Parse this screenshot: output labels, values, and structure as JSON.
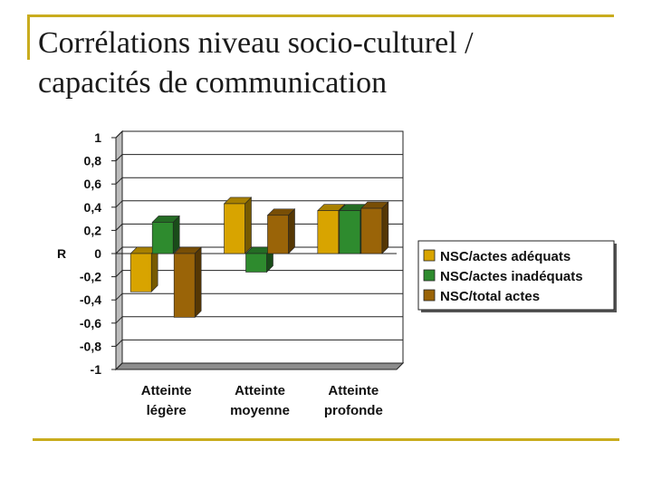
{
  "slide": {
    "title_line1": "Corrélations niveau socio-culturel /",
    "title_line2": "capacités de communication",
    "accent_color": "#c9ac1e"
  },
  "chart_data": {
    "type": "bar",
    "ylabel": "R",
    "ylim": [
      -1,
      1
    ],
    "ytick_labels": [
      "1",
      "0,8",
      "0,6",
      "0,4",
      "0,2",
      "0",
      "-0,2",
      "-0,4",
      "-0,6",
      "-0,8",
      "-1"
    ],
    "categories": [
      [
        "Atteinte",
        "légère"
      ],
      [
        "Atteinte",
        "moyenne"
      ],
      [
        "Atteinte",
        "profonde"
      ]
    ],
    "series": [
      {
        "name": "NSC/actes adéquats",
        "color": "#d8a400",
        "values": [
          -0.33,
          0.43,
          0.37
        ]
      },
      {
        "name": "NSC/actes inadéquats",
        "color": "#2e8b2e",
        "values": [
          0.27,
          -0.16,
          0.37
        ]
      },
      {
        "name": "NSC/total actes",
        "color": "#9a6408",
        "values": [
          -0.55,
          0.33,
          0.39
        ]
      }
    ],
    "grid": true,
    "legend_position": "right"
  }
}
